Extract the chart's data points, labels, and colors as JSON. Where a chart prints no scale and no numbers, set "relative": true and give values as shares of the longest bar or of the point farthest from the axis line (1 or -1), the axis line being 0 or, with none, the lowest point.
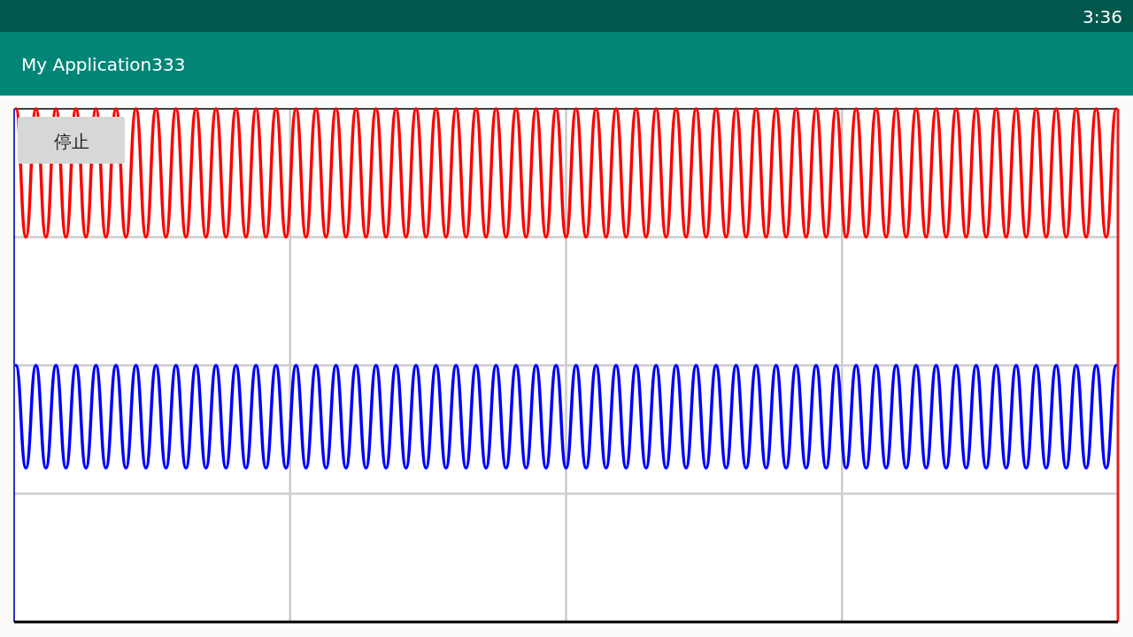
{
  "chart_data": {
    "type": "line",
    "title": "My Application333",
    "annotations": [
      "停止",
      "3:36"
    ],
    "relative": true,
    "grid": true,
    "categories": [
      null,
      null,
      null,
      null,
      null,
      null,
      null,
      null,
      null,
      null,
      null,
      null,
      null,
      null,
      null,
      null,
      null,
      null,
      null,
      null,
      null,
      null,
      null,
      null,
      null,
      null,
      null,
      null,
      null,
      null,
      null,
      null,
      null,
      null,
      null,
      null,
      null,
      null,
      null,
      null,
      null,
      null,
      null,
      null,
      null,
      null,
      null,
      null,
      null,
      null,
      null,
      null,
      null,
      null,
      null,
      null,
      null,
      null,
      null,
      null,
      null,
      null,
      null,
      null,
      null,
      null,
      null,
      null,
      null,
      null,
      null,
      null,
      null,
      null,
      null,
      null,
      null,
      null,
      null,
      null,
      null,
      null,
      null,
      null,
      null,
      null,
      null,
      null,
      null,
      null,
      null,
      null,
      null,
      null,
      null,
      null,
      null,
      null,
      null,
      null,
      null,
      null,
      null,
      null,
      null,
      null,
      null,
      null,
      null,
      null,
      null
    ],
    "series": [
      {
        "color": "#ff0000",
        "values": [
          1,
          0.75,
          1,
          0.75,
          1,
          0.75,
          1,
          0.75,
          1,
          0.75,
          1,
          0.75,
          1,
          0.75,
          1,
          0.75,
          1,
          0.75,
          1,
          0.75,
          1,
          0.75,
          1,
          0.75,
          1,
          0.75,
          1,
          0.75,
          1,
          0.75,
          1,
          0.75,
          1,
          0.75,
          1,
          0.75,
          1,
          0.75,
          1,
          0.75,
          1,
          0.75,
          1,
          0.75,
          1,
          0.75,
          1,
          0.75,
          1,
          0.75,
          1,
          0.75,
          1,
          0.75,
          1,
          0.75,
          1,
          0.75,
          1,
          0.75,
          1,
          0.75,
          1,
          0.75,
          1,
          0.75,
          1,
          0.75,
          1,
          0.75,
          1,
          0.75,
          1,
          0.75,
          1,
          0.75,
          1,
          0.75,
          1,
          0.75,
          1,
          0.75,
          1,
          0.75,
          1,
          0.75,
          1,
          0.75,
          1,
          0.75,
          1,
          0.75,
          1,
          0.75,
          1,
          0.75,
          1,
          0.75,
          1,
          0.75,
          1,
          0.75,
          1,
          0.75,
          1,
          0.75,
          1,
          0.75,
          1,
          0.75,
          1
        ]
      },
      {
        "color": "#0000ff",
        "values": [
          0.5,
          0.3,
          0.5,
          0.3,
          0.5,
          0.3,
          0.5,
          0.3,
          0.5,
          0.3,
          0.5,
          0.3,
          0.5,
          0.3,
          0.5,
          0.3,
          0.5,
          0.3,
          0.5,
          0.3,
          0.5,
          0.3,
          0.5,
          0.3,
          0.5,
          0.3,
          0.5,
          0.3,
          0.5,
          0.3,
          0.5,
          0.3,
          0.5,
          0.3,
          0.5,
          0.3,
          0.5,
          0.3,
          0.5,
          0.3,
          0.5,
          0.3,
          0.5,
          0.3,
          0.5,
          0.3,
          0.5,
          0.3,
          0.5,
          0.3,
          0.5,
          0.3,
          0.5,
          0.3,
          0.5,
          0.3,
          0.5,
          0.3,
          0.5,
          0.3,
          0.5,
          0.3,
          0.5,
          0.3,
          0.5,
          0.3,
          0.5,
          0.3,
          0.5,
          0.3,
          0.5,
          0.3,
          0.5,
          0.3,
          0.5,
          0.3,
          0.5,
          0.3,
          0.5,
          0.3,
          0.5,
          0.3,
          0.5,
          0.3,
          0.5,
          0.3,
          0.5,
          0.3,
          0.5,
          0.3,
          0.5,
          0.3,
          0.5,
          0.3,
          0.5,
          0.3,
          0.5,
          0.3,
          0.5,
          0.3,
          0.5,
          0.3,
          0.5,
          0.3,
          0.5,
          0.3,
          0.5,
          0.3,
          0.5,
          0.3,
          0.5
        ]
      }
    ]
  }
}
